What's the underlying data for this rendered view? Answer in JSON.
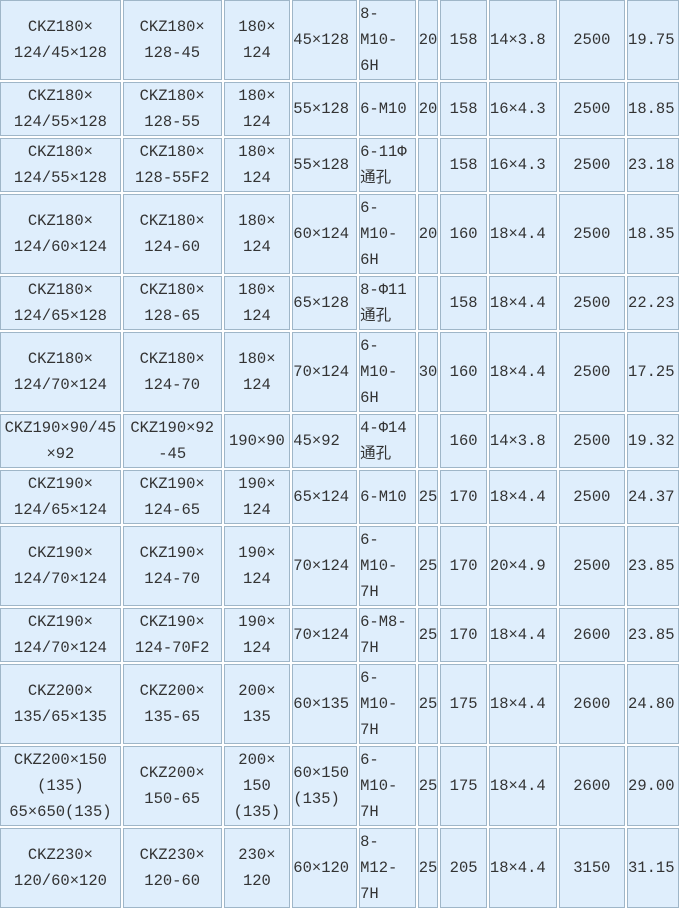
{
  "table": {
    "rows": [
      [
        "CKZ180×\n124/45×128",
        "CKZ180×\n128-45",
        "180×\n124",
        "45×128",
        "8-M10-\n6H",
        "20",
        "158",
        "14×3.8",
        "2500",
        "19.75"
      ],
      [
        "CKZ180×\n124/55×128",
        "CKZ180×\n128-55",
        "180×\n124",
        "55×128",
        "6-M10",
        "20",
        "158",
        "16×4.3",
        "2500",
        "18.85"
      ],
      [
        "CKZ180×\n124/55×128",
        "CKZ180×\n128-55F2",
        "180×\n124",
        "55×128",
        "6-11Φ\n通孔",
        "",
        "158",
        "16×4.3",
        "2500",
        "23.18"
      ],
      [
        "CKZ180×\n124/60×124",
        "CKZ180×\n124-60",
        "180×\n124",
        "60×124",
        "6-M10-\n6H",
        "20",
        "160",
        "18×4.4",
        "2500",
        "18.35"
      ],
      [
        "CKZ180×\n124/65×128",
        "CKZ180×\n128-65",
        "180×\n124",
        "65×128",
        "8-Φ11\n通孔",
        "",
        "158",
        "18×4.4",
        "2500",
        "22.23"
      ],
      [
        "CKZ180×\n124/70×124",
        "CKZ180×\n124-70",
        "180×\n124",
        "70×124",
        "6-M10-\n6H",
        "30",
        "160",
        "18×4.4",
        "2500",
        "17.25"
      ],
      [
        "CKZ190×90/45\n×92",
        "CKZ190×92\n-45",
        "190×90",
        "45×92",
        "4-Φ14\n通孔",
        "",
        "160",
        "14×3.8",
        "2500",
        "19.32"
      ],
      [
        "CKZ190×\n124/65×124",
        "CKZ190×\n124-65",
        "190×\n124",
        "65×124",
        "6-M10",
        "25",
        "170",
        "18×4.4",
        "2500",
        "24.37"
      ],
      [
        "CKZ190×\n124/70×124",
        "CKZ190×\n124-70",
        "190×\n124",
        "70×124",
        "6-M10-\n7H",
        "25",
        "170",
        "20×4.9",
        "2500",
        "23.85"
      ],
      [
        "CKZ190×\n124/70×124",
        "CKZ190×\n124-70F2",
        "190×\n124",
        "70×124",
        "6-M8-\n7H",
        "25",
        "170",
        "18×4.4",
        "2600",
        "23.85"
      ],
      [
        "CKZ200×\n135/65×135",
        "CKZ200×\n135-65",
        "200×\n135",
        "60×135",
        "6-M10-\n7H",
        "25",
        "175",
        "18×4.4",
        "2600",
        "24.80"
      ],
      [
        "CKZ200×150\n(135)\n65×650(135)",
        "CKZ200×\n150-65",
        "200×\n150\n(135)",
        "60×150\n(135)",
        "6-M10-\n7H",
        "25",
        "175",
        "18×4.4",
        "2600",
        "29.00"
      ],
      [
        "CKZ230×\n120/60×120",
        "CKZ230×\n120-60",
        "230×\n120",
        "60×120",
        "8-M12-\n7H",
        "25",
        "205",
        "18×4.4",
        "3150",
        "31.15"
      ]
    ]
  }
}
